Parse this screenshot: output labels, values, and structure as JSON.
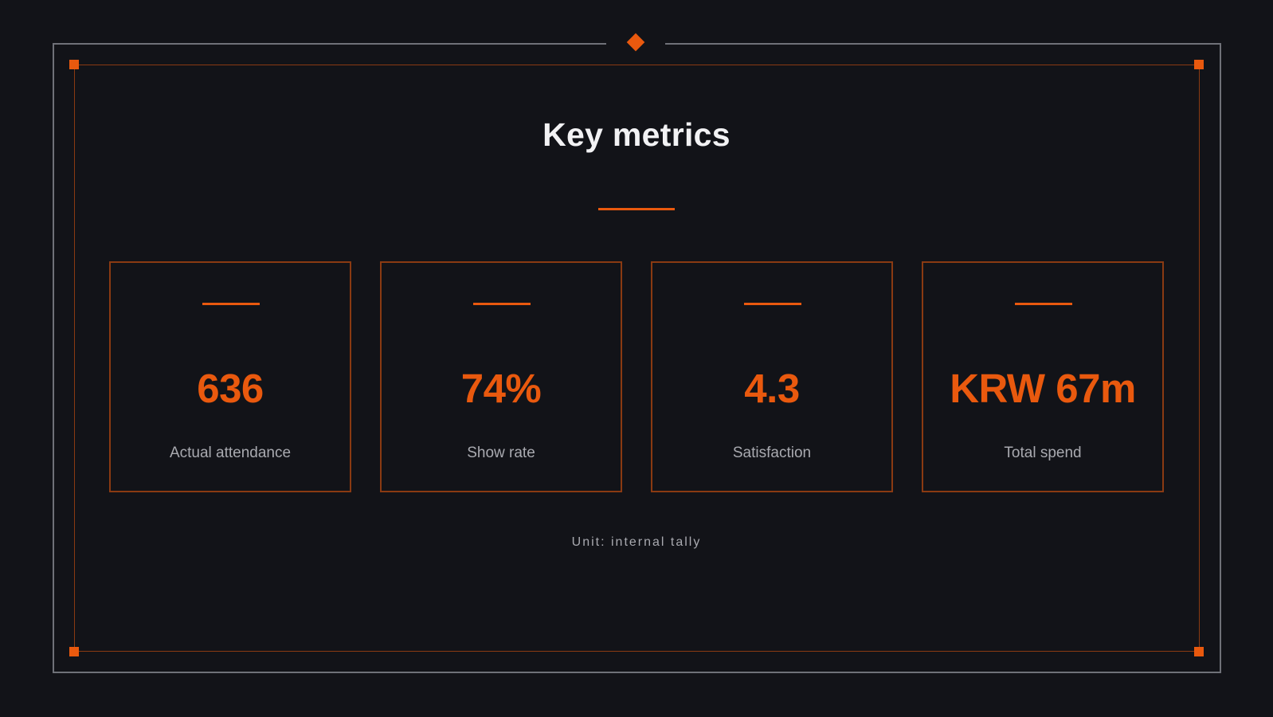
{
  "title": "Key metrics",
  "metrics": [
    {
      "value": "636",
      "label": "Actual attendance"
    },
    {
      "value": "74%",
      "label": "Show rate"
    },
    {
      "value": "4.3",
      "label": "Satisfaction"
    },
    {
      "value": "KRW 67m",
      "label": "Total spend"
    }
  ],
  "footnote": "Unit: internal tally",
  "colors": {
    "background": "#121318",
    "accent": "#e9590e",
    "frame": "#6f7178",
    "title_text": "#f2f2f4",
    "muted_text": "#a9aab0"
  }
}
